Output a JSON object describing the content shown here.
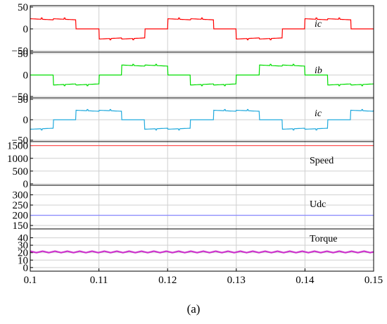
{
  "caption": "(a)",
  "chart_data": {
    "type": "line",
    "xlim": [
      0.1,
      0.15
    ],
    "xticks": [
      0.1,
      0.11,
      0.12,
      0.13,
      0.14,
      0.15
    ],
    "xtick_labels": [
      "0.1",
      "0.11",
      "0.12",
      "0.13",
      "0.14",
      "0.15"
    ],
    "grid": true,
    "panels": [
      {
        "label": "ic",
        "italic": true,
        "color": "#ff0000",
        "ylim": [
          -50,
          50
        ],
        "yticks": [
          50,
          0,
          -50
        ],
        "ytick_labels": [
          "50",
          "0",
          "−50"
        ],
        "waveform": "six-step",
        "amplitude": 22,
        "period": 0.02,
        "phase_deg": 0
      },
      {
        "label": "ib",
        "italic": true,
        "color": "#00dd00",
        "ylim": [
          -50,
          50
        ],
        "yticks": [
          50,
          0,
          -50
        ],
        "ytick_labels": [
          "50",
          "0",
          "−50"
        ],
        "waveform": "six-step",
        "amplitude": 22,
        "period": 0.02,
        "phase_deg": 120
      },
      {
        "label": "ic",
        "italic": true,
        "color": "#22aadd",
        "ylim": [
          -50,
          50
        ],
        "yticks": [
          50,
          0,
          -50
        ],
        "ytick_labels": [
          "50",
          "0",
          "−50"
        ],
        "waveform": "six-step",
        "amplitude": 22,
        "period": 0.02,
        "phase_deg": 240
      },
      {
        "label": "Speed",
        "italic": false,
        "color": "#ff5555",
        "ylim": [
          0,
          1600
        ],
        "yticks": [
          1500,
          1000,
          500,
          0
        ],
        "ytick_labels": [
          "1500",
          "1000",
          "500",
          "0"
        ],
        "waveform": "constant",
        "value": 1500
      },
      {
        "label": "Udc",
        "italic": false,
        "color": "#8888ff",
        "ylim": [
          140,
          340
        ],
        "yticks": [
          300,
          250,
          200,
          150
        ],
        "ytick_labels": [
          "300",
          "250",
          "200",
          "150"
        ],
        "waveform": "constant",
        "value": 200
      },
      {
        "label": "Torque",
        "italic": false,
        "color": "#cc33cc",
        "ylim": [
          -3,
          50
        ],
        "yticks": [
          40,
          30,
          20,
          10,
          0
        ],
        "ytick_labels": [
          "40",
          "30",
          "20",
          "10",
          "0"
        ],
        "waveform": "ripple",
        "value": 21,
        "ripple": 2
      }
    ]
  }
}
